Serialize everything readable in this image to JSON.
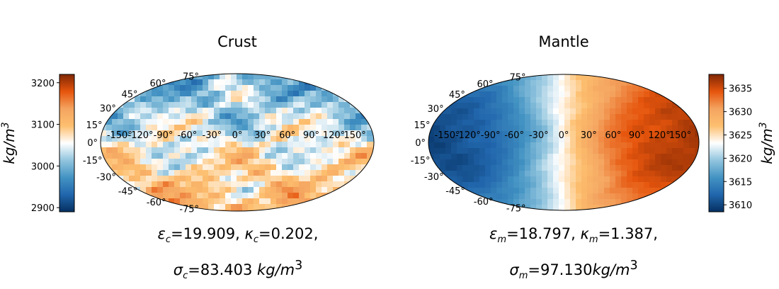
{
  "chart_data": [
    {
      "type": "heatmap",
      "projection": "hammer",
      "title": "Crust",
      "grid": true,
      "lon_labels": [
        "-150°",
        "-120°",
        "-90°",
        "-60°",
        "-30°",
        "0°",
        "30°",
        "60°",
        "90°",
        "120°",
        "150°"
      ],
      "lat_labels": [
        "75°",
        "60°",
        "45°",
        "30°",
        "15°",
        "0°",
        "-15°",
        "-30°",
        "-45°",
        "-60°",
        "-75°"
      ],
      "colorbar": {
        "side": "left",
        "label": "kg/m3",
        "range": [
          2890,
          3220
        ],
        "ticks": [
          2900,
          3000,
          3100,
          3200
        ],
        "colormap": "blue-white-orange (diverging)"
      },
      "caption": {
        "eps_symbol": "ε",
        "eps_sub": "c",
        "eps_value": "=19.909, ",
        "kappa_symbol": "κ",
        "kappa_sub": "c",
        "kappa_value": "=0.202,",
        "sigma_symbol": "σ",
        "sigma_sub": "c",
        "sigma_value": "=83.403 ",
        "unit": "kg/m"
      }
    },
    {
      "type": "heatmap",
      "projection": "hammer",
      "title": "Mantle",
      "grid": true,
      "lon_labels": [
        "-150°",
        "-120°",
        "-90°",
        "-60°",
        "-30°",
        "0°",
        "30°",
        "60°",
        "90°",
        "120°",
        "150°"
      ],
      "lat_labels": [
        "75°",
        "60°",
        "45°",
        "30°",
        "15°",
        "0°",
        "-15°",
        "-30°",
        "-45°",
        "-60°",
        "-75°"
      ],
      "colorbar": {
        "side": "right",
        "label": "kg/m3",
        "range": [
          3608.5,
          3638
        ],
        "ticks": [
          3610,
          3615,
          3620,
          3625,
          3630,
          3635
        ],
        "colormap": "blue-white-orange (diverging)"
      },
      "caption": {
        "eps_symbol": "ε",
        "eps_sub": "m",
        "eps_value": "=18.797, ",
        "kappa_symbol": "κ",
        "kappa_sub": "m",
        "kappa_value": "=1.387,",
        "sigma_symbol": "σ",
        "sigma_sub": "m",
        "sigma_value": "=97.130",
        "unit": "kg/m"
      }
    }
  ],
  "colors": {
    "cmap": [
      "#053061",
      "#2166ac",
      "#4393c3",
      "#92c5de",
      "#ffffff",
      "#fdbf6f",
      "#f4a460",
      "#e6550d",
      "#7f2704"
    ]
  }
}
